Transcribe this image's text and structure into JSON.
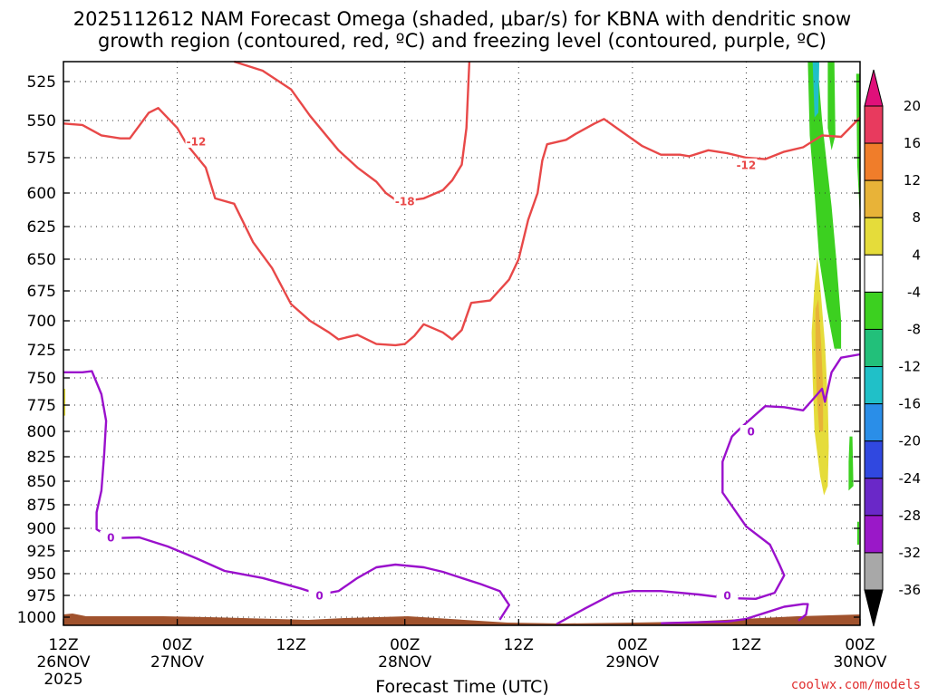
{
  "chart_data": {
    "type": "time-height",
    "title": [
      "2025112612 NAM Forecast Omega (shaded, μbar/s) for KBNA with dendritic snow",
      "growth region (contoured, red, ºC) and freezing level (contoured, purple, ºC)"
    ],
    "xlabel": "Forecast Time (UTC)",
    "credit": "coolwx.com/models",
    "x_range_hours": [
      0,
      84
    ],
    "x_ticks": [
      {
        "h": 0,
        "l1": "12Z",
        "l2": "26NOV",
        "l3": "2025"
      },
      {
        "h": 12,
        "l1": "00Z",
        "l2": "27NOV",
        "l3": ""
      },
      {
        "h": 24,
        "l1": "12Z",
        "l2": "",
        "l3": ""
      },
      {
        "h": 36,
        "l1": "00Z",
        "l2": "28NOV",
        "l3": ""
      },
      {
        "h": 48,
        "l1": "12Z",
        "l2": "",
        "l3": ""
      },
      {
        "h": 60,
        "l1": "00Z",
        "l2": "29NOV",
        "l3": ""
      },
      {
        "h": 72,
        "l1": "12Z",
        "l2": "",
        "l3": ""
      },
      {
        "h": 84,
        "l1": "00Z",
        "l2": "30NOV",
        "l3": ""
      }
    ],
    "y_range_hpa": [
      510,
      1012
    ],
    "y_ticks": [
      {
        "p": 525,
        "y": 90
      },
      {
        "p": 550,
        "y": 133
      },
      {
        "p": 575,
        "y": 174
      },
      {
        "p": 600,
        "y": 213
      },
      {
        "p": 625,
        "y": 250
      },
      {
        "p": 650,
        "y": 286
      },
      {
        "p": 675,
        "y": 321
      },
      {
        "p": 700,
        "y": 354
      },
      {
        "p": 725,
        "y": 386
      },
      {
        "p": 750,
        "y": 417
      },
      {
        "p": 775,
        "y": 447
      },
      {
        "p": 800,
        "y": 476
      },
      {
        "p": 825,
        "y": 504
      },
      {
        "p": 850,
        "y": 531
      },
      {
        "p": 875,
        "y": 557
      },
      {
        "p": 900,
        "y": 583
      },
      {
        "p": 925,
        "y": 608
      },
      {
        "p": 950,
        "y": 633
      },
      {
        "p": 975,
        "y": 657
      },
      {
        "p": 1000,
        "y": 681
      }
    ],
    "colorbar": {
      "levels": [
        20,
        16,
        12,
        8,
        4,
        -4,
        -8,
        -12,
        -16,
        -20,
        -24,
        -28,
        -32,
        -36
      ],
      "colors": [
        "#e83a5e",
        "#f07d2a",
        "#e8b338",
        "#e5dc3a",
        "#ffffff",
        "#3cd020",
        "#22c07a",
        "#20c0c8",
        "#2a8ee8",
        "#3048e0",
        "#6a28c8",
        "#9a18c8",
        "#a8a8a8"
      ],
      "top_arrow": "#e0107a",
      "bottom_arrow": "#000000"
    },
    "contours": [
      {
        "series": "dgz_temperature",
        "color": "#e84848",
        "label": "-12",
        "at_hour": 14,
        "at_hpa": 564,
        "points": [
          [
            0,
            552
          ],
          [
            2,
            553
          ],
          [
            4,
            560
          ],
          [
            6,
            562
          ],
          [
            7,
            562
          ],
          [
            9,
            545
          ],
          [
            10,
            542
          ],
          [
            12,
            555
          ],
          [
            13,
            566
          ],
          [
            15,
            582
          ],
          [
            16,
            604
          ],
          [
            18,
            608
          ],
          [
            20,
            637
          ],
          [
            22,
            657
          ],
          [
            24,
            686
          ],
          [
            26,
            700
          ],
          [
            28,
            710
          ],
          [
            29,
            716
          ],
          [
            31,
            712
          ],
          [
            33,
            720
          ],
          [
            35,
            721
          ],
          [
            36,
            720
          ],
          [
            37,
            713
          ],
          [
            38,
            703
          ],
          [
            40,
            710
          ],
          [
            41,
            716
          ],
          [
            42,
            708
          ],
          [
            43,
            685
          ],
          [
            45,
            683
          ],
          [
            47,
            666
          ],
          [
            48,
            650
          ],
          [
            49,
            620
          ],
          [
            50,
            600
          ],
          [
            50.5,
            577
          ],
          [
            51,
            566
          ],
          [
            53,
            563
          ],
          [
            54,
            559
          ],
          [
            56,
            552
          ],
          [
            57,
            549
          ],
          [
            59,
            558
          ],
          [
            61,
            567
          ],
          [
            63,
            573
          ],
          [
            65,
            573
          ],
          [
            66,
            574
          ],
          [
            68,
            570
          ],
          [
            70,
            572
          ],
          [
            72,
            575
          ],
          [
            74,
            576
          ],
          [
            76,
            571
          ],
          [
            78,
            568
          ],
          [
            80,
            560
          ],
          [
            82,
            561
          ],
          [
            84,
            548
          ]
        ]
      },
      {
        "series": "dgz_temperature",
        "color": "#e84848",
        "label": "-12",
        "at_hour": 72,
        "at_hpa": 580,
        "points": []
      },
      {
        "series": "dgz_temperature",
        "color": "#e84848",
        "label": "-18",
        "at_hour": 36,
        "at_hpa": 606,
        "points": [
          [
            18,
            512
          ],
          [
            21,
            518
          ],
          [
            24,
            530
          ],
          [
            26,
            547
          ],
          [
            29,
            570
          ],
          [
            31,
            582
          ],
          [
            33,
            592
          ],
          [
            34,
            600
          ],
          [
            35,
            605
          ],
          [
            36,
            606
          ],
          [
            38,
            604
          ],
          [
            40,
            598
          ],
          [
            41,
            591
          ],
          [
            42,
            580
          ],
          [
            42.5,
            555
          ],
          [
            42.8,
            512
          ]
        ]
      },
      {
        "series": "freezing_level",
        "color": "#9a10cc",
        "label": "0",
        "at_hour": 5,
        "at_hpa": 910,
        "points": [
          [
            0,
            745
          ],
          [
            2,
            745
          ],
          [
            3,
            744
          ],
          [
            4,
            765
          ],
          [
            4.5,
            790
          ],
          [
            4.3,
            822
          ],
          [
            4,
            860
          ],
          [
            3.5,
            883
          ],
          [
            3.5,
            901
          ],
          [
            5,
            911
          ],
          [
            8,
            910
          ],
          [
            11,
            920
          ],
          [
            14,
            933
          ],
          [
            17,
            947
          ],
          [
            21,
            955
          ],
          [
            25,
            967
          ],
          [
            27,
            974
          ],
          [
            29,
            970
          ],
          [
            31,
            955
          ],
          [
            33,
            943
          ],
          [
            35,
            940
          ],
          [
            38,
            943
          ],
          [
            40,
            948
          ],
          [
            42,
            955
          ],
          [
            44,
            962
          ],
          [
            46,
            970
          ],
          [
            47,
            986
          ],
          [
            46,
            1003
          ]
        ]
      },
      {
        "series": "freezing_level",
        "color": "#9a10cc",
        "label": "0",
        "at_hour": 27,
        "at_hpa": 975,
        "points": []
      },
      {
        "series": "freezing_level",
        "color": "#9a10cc",
        "label": "0",
        "at_hour": 72.5,
        "at_hpa": 800,
        "points": [
          [
            52,
            1008
          ],
          [
            55,
            990
          ],
          [
            58,
            973
          ],
          [
            60,
            970
          ],
          [
            63,
            970
          ],
          [
            67,
            974
          ],
          [
            70,
            978
          ],
          [
            73,
            979
          ],
          [
            75,
            972
          ],
          [
            76,
            952
          ],
          [
            75.5,
            940
          ],
          [
            74.5,
            918
          ],
          [
            72,
            898
          ],
          [
            69.5,
            862
          ],
          [
            69.5,
            830
          ],
          [
            70.5,
            805
          ],
          [
            71.5,
            796
          ],
          [
            73,
            784
          ],
          [
            74,
            776
          ],
          [
            76,
            777
          ],
          [
            78,
            780
          ],
          [
            79,
            770
          ],
          [
            80,
            760
          ],
          [
            80.3,
            772
          ],
          [
            81,
            745
          ],
          [
            82,
            732
          ],
          [
            84,
            729
          ]
        ]
      },
      {
        "series": "freezing_level",
        "color": "#9a10cc",
        "label": "0",
        "at_hour": 70,
        "at_hpa": 975,
        "points": []
      },
      {
        "series": "freezing_level",
        "color": "#9a10cc",
        "label": "",
        "at_hour": 0,
        "at_hpa": 0,
        "points": [
          [
            63,
            1007
          ],
          [
            70,
            1005
          ],
          [
            72,
            1002
          ],
          [
            74,
            995
          ],
          [
            76,
            988
          ],
          [
            78,
            985
          ],
          [
            78.5,
            985
          ],
          [
            78.3,
            997
          ],
          [
            77.5,
            1004
          ]
        ]
      }
    ],
    "shaded": [
      {
        "value": "-8",
        "color": "#3cd020",
        "polygon": [
          [
            78.5,
            510
          ],
          [
            79.5,
            510
          ],
          [
            80,
            550
          ],
          [
            80.5,
            580
          ],
          [
            81,
            610
          ],
          [
            81.5,
            650
          ],
          [
            82,
            700
          ],
          [
            82,
            724
          ],
          [
            81.3,
            724
          ],
          [
            80.5,
            690
          ],
          [
            79.7,
            650
          ],
          [
            79.2,
            600
          ],
          [
            78.7,
            560
          ]
        ]
      },
      {
        "value": "-12",
        "color": "#20c0c8",
        "polygon": [
          [
            79,
            510
          ],
          [
            79.7,
            510
          ],
          [
            79.6,
            545
          ],
          [
            79.2,
            548
          ]
        ]
      },
      {
        "value": "-8",
        "color": "#3cd020",
        "polygon": [
          [
            80.6,
            510
          ],
          [
            81.3,
            510
          ],
          [
            81.4,
            560
          ],
          [
            81,
            570
          ],
          [
            80.6,
            555
          ]
        ]
      },
      {
        "value": "-8",
        "color": "#3cd020",
        "polygon": [
          [
            83.6,
            520
          ],
          [
            84,
            520
          ],
          [
            84,
            620
          ],
          [
            83.7,
            580
          ]
        ]
      },
      {
        "value": "-8",
        "color": "#3cd020",
        "polygon": [
          [
            82.9,
            805
          ],
          [
            83.2,
            805
          ],
          [
            83.3,
            855
          ],
          [
            82.8,
            860
          ],
          [
            82.8,
            830
          ]
        ]
      },
      {
        "value": "-8",
        "color": "#3cd020",
        "polygon": [
          [
            83.7,
            893
          ],
          [
            83.9,
            893
          ],
          [
            83.9,
            918
          ],
          [
            83.7,
            918
          ]
        ]
      },
      {
        "value": "4",
        "color": "#e5dc3a",
        "polygon": [
          [
            79.2,
            670
          ],
          [
            79.5,
            648
          ],
          [
            79.9,
            680
          ],
          [
            80.3,
            720
          ],
          [
            80.6,
            770
          ],
          [
            80.7,
            815
          ],
          [
            80.6,
            855
          ],
          [
            80.2,
            865
          ],
          [
            79.8,
            845
          ],
          [
            79.2,
            800
          ],
          [
            79,
            750
          ],
          [
            78.9,
            710
          ]
        ]
      },
      {
        "value": "8",
        "color": "#e8b338",
        "polygon": [
          [
            79.3,
            690
          ],
          [
            79.6,
            682
          ],
          [
            79.9,
            720
          ],
          [
            80.1,
            760
          ],
          [
            80.1,
            800
          ],
          [
            79.7,
            800
          ],
          [
            79.4,
            760
          ],
          [
            79.3,
            720
          ]
        ]
      },
      {
        "value": "4",
        "color": "#e5dc3a",
        "polygon": [
          [
            0,
            760
          ],
          [
            0.2,
            760
          ],
          [
            0.2,
            785
          ],
          [
            0,
            785
          ]
        ]
      }
    ]
  }
}
